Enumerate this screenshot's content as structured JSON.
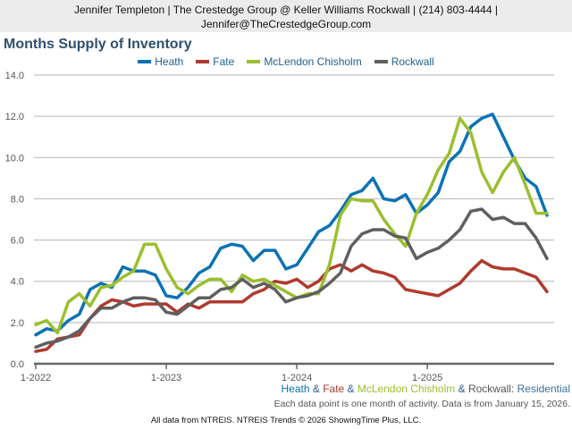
{
  "agent_bar": {
    "line1": "Jennifer Templeton | The Crestedge Group @ Keller Williams Rockwall | (214) 803-4444 |",
    "line2": "Jennifer@TheCrestedgeGroup.com"
  },
  "subtitle_parts": {
    "heath": "Heath",
    "amp1": " & ",
    "fate": "Fate",
    "amp2": " & ",
    "mclendon": "McLendon Chisholm",
    "amp3": " & ",
    "rockwall": "Rockwall",
    "colon": ": ",
    "type": "Residential"
  },
  "note": "Each data point is one month of activity. Data is from January 15, 2026.",
  "footer": "All data from NTREIS. NTREIS Trends © 2026 ShowingTime Plus, LLC.",
  "chart_data": {
    "type": "line",
    "title": "Months Supply of Inventory",
    "xlabel": "",
    "ylabel": "",
    "ylim": [
      0,
      14
    ],
    "yticks": [
      "0.0",
      "2.0",
      "4.0",
      "6.0",
      "8.0",
      "10.0",
      "12.0",
      "14.0"
    ],
    "xticks": [
      "1-2022",
      "1-2023",
      "1-2024",
      "1-2025"
    ],
    "grid": true,
    "legend_position": "top-center",
    "x_start": "1-2022",
    "x_count_months": 48,
    "series": [
      {
        "name": "Heath",
        "color": "#0b72b5",
        "values": [
          1.4,
          1.7,
          1.6,
          2.1,
          2.4,
          3.6,
          3.9,
          3.7,
          4.7,
          4.5,
          4.5,
          4.3,
          3.3,
          3.2,
          3.7,
          4.4,
          4.7,
          5.6,
          5.8,
          5.7,
          5.0,
          5.5,
          5.5,
          4.6,
          4.8,
          5.6,
          6.4,
          6.7,
          7.4,
          8.2,
          8.4,
          9.0,
          8.0,
          7.9,
          8.2,
          7.3,
          7.7,
          8.3,
          9.8,
          10.3,
          11.5,
          11.9,
          12.1,
          11.0,
          9.9,
          9.0,
          8.6,
          7.2
        ]
      },
      {
        "name": "Fate",
        "color": "#b03a2e",
        "values": [
          0.6,
          0.7,
          1.2,
          1.3,
          1.4,
          2.2,
          2.8,
          3.1,
          3.0,
          2.8,
          2.9,
          2.9,
          2.9,
          2.5,
          2.9,
          2.7,
          3.0,
          3.0,
          3.0,
          3.0,
          3.4,
          3.6,
          4.0,
          3.9,
          4.1,
          3.7,
          4.0,
          4.6,
          4.8,
          4.5,
          4.8,
          4.5,
          4.4,
          4.2,
          3.6,
          3.5,
          3.4,
          3.3,
          3.6,
          3.9,
          4.5,
          5.0,
          4.7,
          4.6,
          4.6,
          4.4,
          4.2,
          3.5
        ]
      },
      {
        "name": "McLendon Chisholm",
        "color": "#9bbf2e",
        "values": [
          1.9,
          2.1,
          1.5,
          3.0,
          3.4,
          2.8,
          3.7,
          3.8,
          4.2,
          4.5,
          5.8,
          5.8,
          4.6,
          3.7,
          3.4,
          3.8,
          4.1,
          4.1,
          3.5,
          4.3,
          4.0,
          4.1,
          3.8,
          3.5,
          3.2,
          3.4,
          3.4,
          4.8,
          7.2,
          8.0,
          7.9,
          7.9,
          7.0,
          6.3,
          5.7,
          7.3,
          8.2,
          9.4,
          10.2,
          11.9,
          11.2,
          9.3,
          8.3,
          9.3,
          10.0,
          8.7,
          7.3,
          7.3
        ]
      },
      {
        "name": "Rockwall",
        "color": "#5f5f5f",
        "values": [
          0.8,
          1.0,
          1.1,
          1.3,
          1.6,
          2.2,
          2.7,
          2.7,
          3.0,
          3.2,
          3.2,
          3.1,
          2.5,
          2.4,
          2.8,
          3.2,
          3.2,
          3.6,
          3.7,
          4.1,
          3.7,
          3.9,
          3.6,
          3.0,
          3.2,
          3.3,
          3.5,
          3.9,
          4.4,
          5.7,
          6.3,
          6.5,
          6.5,
          6.2,
          6.1,
          5.1,
          5.4,
          5.6,
          6.0,
          6.5,
          7.4,
          7.5,
          7.0,
          7.1,
          6.8,
          6.8,
          6.1,
          5.1
        ]
      }
    ]
  }
}
